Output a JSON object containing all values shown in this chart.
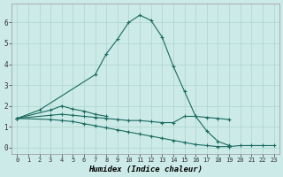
{
  "title": "",
  "xlabel": "Humidex (Indice chaleur)",
  "ylabel": "",
  "background_color": "#cceae7",
  "grid_color": "#add4d0",
  "line_color": "#1a6b60",
  "x_ticks": [
    0,
    1,
    2,
    3,
    4,
    5,
    6,
    7,
    8,
    9,
    10,
    11,
    12,
    13,
    14,
    15,
    16,
    17,
    18,
    19,
    20,
    21,
    22,
    23
  ],
  "y_ticks": [
    0,
    1,
    2,
    3,
    4,
    5,
    6
  ],
  "xlim": [
    -0.5,
    23.5
  ],
  "ylim": [
    -0.3,
    6.9
  ],
  "series": [
    {
      "x": [
        0,
        2,
        7,
        8,
        9,
        10,
        11,
        12,
        13,
        14,
        15,
        16,
        17,
        18,
        19
      ],
      "y": [
        1.4,
        1.8,
        3.5,
        4.5,
        5.2,
        6.0,
        6.35,
        6.1,
        5.3,
        3.9,
        2.7,
        1.5,
        0.8,
        0.3,
        0.1
      ]
    },
    {
      "x": [
        0,
        3,
        4,
        5,
        6,
        7,
        8
      ],
      "y": [
        1.4,
        1.8,
        2.0,
        1.85,
        1.75,
        1.6,
        1.5
      ]
    },
    {
      "x": [
        0,
        3,
        4,
        5,
        6,
        7,
        8,
        9,
        10,
        11,
        12,
        13,
        14,
        15,
        16,
        17,
        18,
        19
      ],
      "y": [
        1.4,
        1.55,
        1.6,
        1.55,
        1.5,
        1.45,
        1.4,
        1.35,
        1.3,
        1.3,
        1.25,
        1.2,
        1.2,
        1.5,
        1.5,
        1.45,
        1.4,
        1.35
      ]
    },
    {
      "x": [
        0,
        3,
        4,
        5,
        6,
        7,
        8,
        9,
        10,
        11,
        12,
        13,
        14,
        15,
        16,
        17,
        18,
        19,
        20,
        21,
        22,
        23
      ],
      "y": [
        1.4,
        1.35,
        1.3,
        1.25,
        1.15,
        1.05,
        0.95,
        0.85,
        0.75,
        0.65,
        0.55,
        0.45,
        0.35,
        0.25,
        0.15,
        0.1,
        0.05,
        0.05,
        0.1,
        0.1,
        0.1,
        0.1
      ]
    }
  ]
}
